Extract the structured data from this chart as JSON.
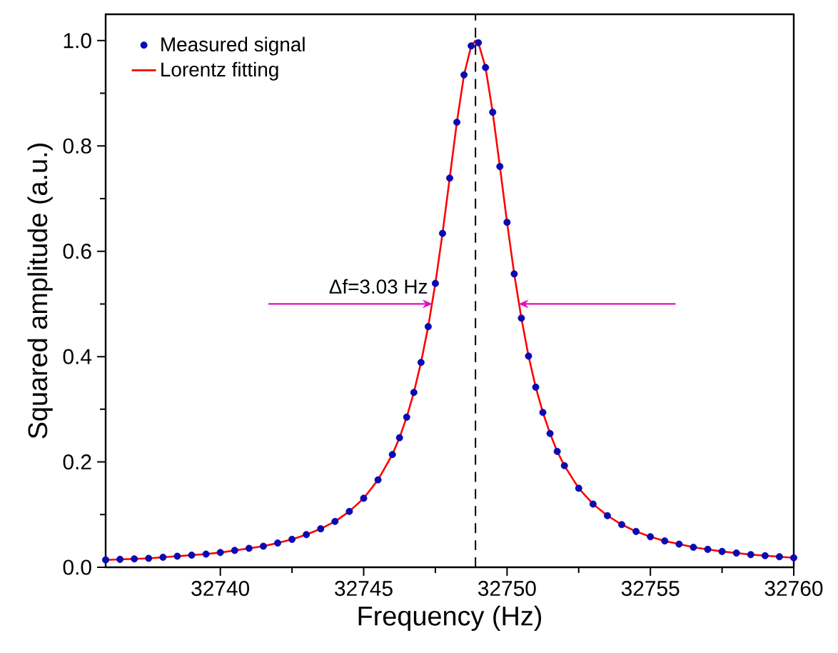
{
  "chart_data": {
    "type": "scatter",
    "xlabel": "Frequency (Hz)",
    "ylabel": "Squared amplitude (a.u.)",
    "xlim": [
      32736,
      32760
    ],
    "ylim": [
      0,
      1.05
    ],
    "xticks": [
      32740,
      32745,
      32750,
      32755,
      32760
    ],
    "yticks": [
      {
        "value": 0,
        "label": "0.0"
      },
      {
        "value": 0.2,
        "label": "0.2"
      },
      {
        "value": 0.4,
        "label": "0.4"
      },
      {
        "value": 0.6,
        "label": "0.6"
      },
      {
        "value": 0.8,
        "label": "0.8"
      },
      {
        "value": 1.0,
        "label": "1.0"
      }
    ],
    "legend": "top left",
    "grid": false,
    "ref_lines": [
      {
        "axis": "x",
        "value": 32748.9,
        "color": "#000000",
        "line_style": "dashed"
      }
    ],
    "annotations": [
      {
        "text": "Δf=3.03 Hz",
        "x": 32747.4,
        "y": 0.5
      }
    ],
    "series": [
      {
        "name": "Measured signal",
        "color": "#0a0ab4",
        "marker": "circle",
        "x": [
          32736,
          32736.5,
          32737,
          32737.5,
          32738,
          32738.5,
          32739,
          32739.5,
          32740,
          32740.5,
          32741,
          32741.5,
          32742,
          32742.5,
          32743,
          32743.5,
          32744,
          32744.5,
          32745,
          32745.5,
          32746,
          32746.25,
          32746.5,
          32746.75,
          32747,
          32747.25,
          32747.5,
          32747.75,
          32748,
          32748.25,
          32748.5,
          32748.75,
          32749,
          32749.25,
          32749.5,
          32749.75,
          32750,
          32750.25,
          32750.5,
          32750.75,
          32751,
          32751.25,
          32751.5,
          32751.75,
          32752,
          32752.5,
          32753,
          32753.5,
          32754,
          32754.5,
          32755,
          32755.5,
          32756,
          32756.5,
          32757,
          32757.5,
          32758,
          32758.5,
          32759,
          32759.5,
          32760
        ],
        "values": [
          0.014,
          0.015,
          0.016,
          0.017,
          0.019,
          0.021,
          0.023,
          0.025,
          0.028,
          0.032,
          0.036,
          0.04,
          0.046,
          0.053,
          0.062,
          0.073,
          0.087,
          0.106,
          0.131,
          0.166,
          0.214,
          0.246,
          0.285,
          0.332,
          0.389,
          0.457,
          0.539,
          0.634,
          0.739,
          0.845,
          0.935,
          0.99,
          0.996,
          0.949,
          0.864,
          0.761,
          0.655,
          0.557,
          0.473,
          0.401,
          0.342,
          0.294,
          0.254,
          0.22,
          0.193,
          0.15,
          0.12,
          0.098,
          0.081,
          0.068,
          0.058,
          0.05,
          0.044,
          0.038,
          0.034,
          0.03,
          0.027,
          0.024,
          0.022,
          0.02,
          0.018
        ]
      },
      {
        "name": "Lorentz fitting",
        "type": "line",
        "color": "#ff0000",
        "line_style": "solid",
        "marker": "none",
        "x": [
          32736,
          32736.5,
          32737,
          32737.5,
          32738,
          32738.5,
          32739,
          32739.5,
          32740,
          32740.5,
          32741,
          32741.5,
          32742,
          32742.5,
          32743,
          32743.5,
          32744,
          32744.5,
          32745,
          32745.5,
          32746,
          32746.25,
          32746.5,
          32746.75,
          32747,
          32747.25,
          32747.5,
          32747.75,
          32748,
          32748.25,
          32748.5,
          32748.75,
          32748.9,
          32749,
          32749.25,
          32749.5,
          32749.75,
          32750,
          32750.25,
          32750.5,
          32750.75,
          32751,
          32751.25,
          32751.5,
          32751.75,
          32752,
          32752.5,
          32753,
          32753.5,
          32754,
          32754.5,
          32755,
          32755.5,
          32756,
          32756.5,
          32757,
          32757.5,
          32758,
          32758.5,
          32759,
          32759.5,
          32760
        ],
        "values": [
          0.014,
          0.015,
          0.016,
          0.017,
          0.019,
          0.021,
          0.023,
          0.025,
          0.028,
          0.032,
          0.036,
          0.04,
          0.046,
          0.053,
          0.062,
          0.073,
          0.087,
          0.106,
          0.131,
          0.166,
          0.214,
          0.246,
          0.285,
          0.332,
          0.389,
          0.457,
          0.539,
          0.634,
          0.739,
          0.845,
          0.935,
          0.99,
          1.0,
          0.996,
          0.949,
          0.864,
          0.761,
          0.655,
          0.557,
          0.473,
          0.401,
          0.342,
          0.294,
          0.254,
          0.22,
          0.193,
          0.15,
          0.12,
          0.098,
          0.081,
          0.068,
          0.058,
          0.05,
          0.044,
          0.038,
          0.034,
          0.03,
          0.027,
          0.024,
          0.022,
          0.02,
          0.018
        ]
      }
    ]
  }
}
